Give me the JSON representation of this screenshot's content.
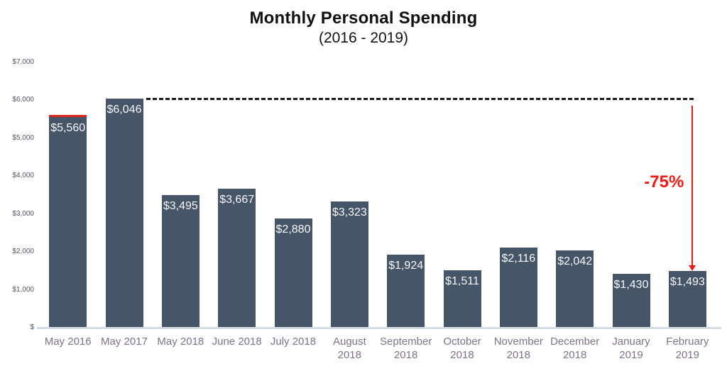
{
  "title": "Monthly Personal Spending",
  "subtitle": "(2016 - 2019)",
  "chart_data": {
    "type": "bar",
    "title": "Monthly Personal Spending",
    "subtitle": "(2016 - 2019)",
    "categories": [
      "May 2016",
      "May 2017",
      "May 2018",
      "June 2018",
      "July 2018",
      "August 2018",
      "September 2018",
      "October 2018",
      "November 2018",
      "December 2018",
      "January 2019",
      "February 2019"
    ],
    "values": [
      5560,
      6046,
      3495,
      3667,
      2880,
      3323,
      1924,
      1511,
      2116,
      2042,
      1430,
      1493
    ],
    "value_labels": [
      "$5,560",
      "$6,046",
      "$3,495",
      "$3,667",
      "$2,880",
      "$3,323",
      "$1,924",
      "$1,511",
      "$2,116",
      "$2,042",
      "$1,430",
      "$1,493"
    ],
    "xlabel": "",
    "ylabel": "",
    "ylim": [
      0,
      7000
    ],
    "y_ticks": [
      {
        "value": 7000,
        "label": "$7,000"
      },
      {
        "value": 6000,
        "label": "$6,000"
      },
      {
        "value": 5000,
        "label": "$5,000"
      },
      {
        "value": 4000,
        "label": "$4,000"
      },
      {
        "value": 3000,
        "label": "$3,000"
      },
      {
        "value": 2000,
        "label": "$2,000"
      },
      {
        "value": 1000,
        "label": "$1,000"
      },
      {
        "value": 0,
        "label": "$"
      }
    ],
    "grid": false,
    "legend": false,
    "highlight_cap_bar_index": 0,
    "annotation": {
      "label": "-75%",
      "from_category": "May 2017",
      "from_value": 6046,
      "to_category": "February 2019",
      "to_value": 1493,
      "style": "dotted-reference-line-with-down-arrow"
    },
    "colors": {
      "bar": "#475569",
      "bar_value_text": "#f7f8f9",
      "x_axis_text": "#7d7386",
      "y_tick_text": "#57525f",
      "baseline": "#d5dde2",
      "annotation_red": "#ee1b15",
      "first_bar_cap_red": "#e02420",
      "dotted_line": "#1a1a1a",
      "title_text": "#111111",
      "background": "#ffffff"
    }
  }
}
